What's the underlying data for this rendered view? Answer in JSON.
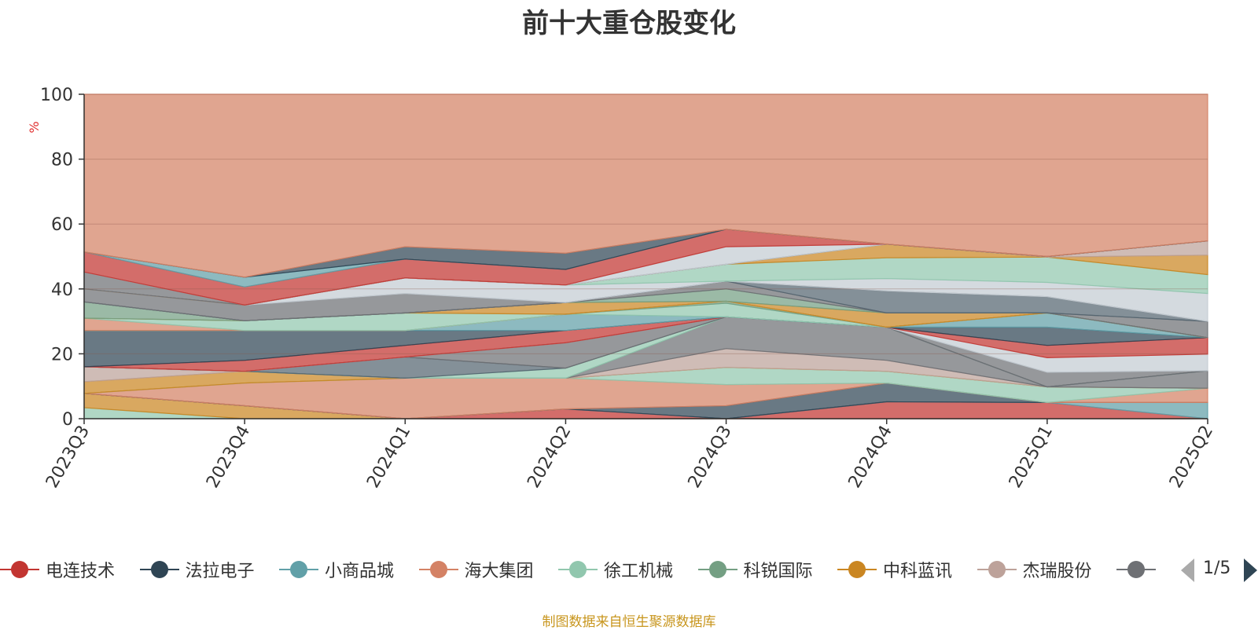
{
  "title": "前十大重仓股变化",
  "source_note": "制图数据来自恒生聚源数据库",
  "legend": {
    "items": [
      {
        "name": "电连技术",
        "color": "#c23531"
      },
      {
        "name": "法拉电子",
        "color": "#2f4554"
      },
      {
        "name": "小商品城",
        "color": "#61a0a8"
      },
      {
        "name": "海大集团",
        "color": "#d48265"
      },
      {
        "name": "徐工机械",
        "color": "#91c7ae"
      },
      {
        "name": "科锐国际",
        "color": "#749f83"
      },
      {
        "name": "中科蓝讯",
        "color": "#ca8622"
      },
      {
        "name": "杰瑞股份",
        "color": "#bda29a"
      },
      {
        "name": "",
        "color": "#6e7074"
      }
    ],
    "page_indicator": "1/5"
  },
  "chart_data": {
    "type": "area",
    "stacked": true,
    "title": "前十大重仓股变化",
    "ylabel": "%",
    "xlabel": "",
    "x": [
      "2023Q3",
      "2023Q4",
      "2024Q1",
      "2024Q2",
      "2024Q3",
      "2024Q4",
      "2025Q1",
      "2025Q2"
    ],
    "ylim": [
      0,
      100
    ],
    "yticks": [
      0,
      20,
      40,
      60,
      80,
      100
    ],
    "grid": true,
    "note": "layers listed bottom to top; values are each layer's top edge (cumulative percent)",
    "series_tops": [
      {
        "color": "#91c7ae",
        "values": [
          3.4,
          0,
          0,
          0,
          0,
          0,
          0,
          0
        ]
      },
      {
        "color": "#ca8622",
        "values": [
          7.8,
          4.0,
          0,
          0,
          0,
          0,
          0,
          0
        ]
      },
      {
        "color": "#c23531",
        "values": [
          7.8,
          4.0,
          0,
          3.0,
          0,
          5.2,
          5.0,
          0
        ]
      },
      {
        "color": "#61a0a8",
        "values": [
          7.8,
          4.0,
          0,
          3.0,
          0,
          5.2,
          5.0,
          5.0
        ]
      },
      {
        "color": "#2f4554",
        "values": [
          7.8,
          4.0,
          0,
          3.0,
          4.0,
          11.0,
          5.0,
          5.0
        ]
      },
      {
        "color": "#d48265",
        "values": [
          7.8,
          11.0,
          12.5,
          12.5,
          10.5,
          11.0,
          5.0,
          9.4
        ]
      },
      {
        "color": "#91c7ae",
        "values": [
          7.8,
          11.0,
          12.5,
          12.5,
          15.8,
          14.6,
          9.8,
          9.4
        ]
      },
      {
        "color": "#ca8622",
        "values": [
          11.4,
          14.6,
          12.5,
          12.5,
          15.8,
          14.6,
          9.8,
          9.4
        ]
      },
      {
        "color": "#bda29a",
        "values": [
          16.0,
          14.6,
          12.5,
          12.5,
          21.6,
          18.0,
          9.8,
          9.4
        ]
      },
      {
        "color": "#6e7074",
        "values": [
          16.0,
          14.6,
          12.5,
          12.5,
          31.4,
          28.2,
          9.8,
          14.8
        ]
      },
      {
        "color": "#91c7ae",
        "values": [
          16.0,
          14.6,
          12.5,
          15.6,
          31.4,
          28.2,
          9.8,
          14.8
        ]
      },
      {
        "color": "#546570",
        "values": [
          16.0,
          14.6,
          19.0,
          15.6,
          31.4,
          28.2,
          9.8,
          14.8
        ]
      },
      {
        "color": "#6e7074",
        "values": [
          16.0,
          14.6,
          19.0,
          23.4,
          31.4,
          28.2,
          14.3,
          14.8
        ]
      },
      {
        "color": "#c4ccd3",
        "values": [
          16.0,
          14.6,
          19.0,
          23.4,
          31.4,
          28.2,
          18.8,
          19.9
        ]
      },
      {
        "color": "#c23531",
        "values": [
          16.0,
          18.0,
          22.6,
          27.2,
          31.4,
          28.2,
          22.6,
          25.0
        ]
      },
      {
        "color": "#2f4554",
        "values": [
          27.2,
          27.2,
          27.2,
          27.2,
          31.4,
          28.2,
          28.2,
          25.0
        ]
      },
      {
        "color": "#61a0a8",
        "values": [
          27.2,
          27.2,
          27.2,
          32.2,
          31.4,
          28.2,
          32.6,
          25.0
        ]
      },
      {
        "color": "#91c7ae",
        "values": [
          27.2,
          27.2,
          27.2,
          32.2,
          35.6,
          28.2,
          32.6,
          25.0
        ]
      },
      {
        "color": "#749f83",
        "values": [
          27.2,
          27.2,
          27.2,
          32.2,
          36.2,
          28.2,
          32.6,
          25.0
        ]
      },
      {
        "color": "#d48265",
        "values": [
          31.0,
          27.2,
          27.2,
          32.2,
          36.2,
          28.2,
          32.6,
          25.0
        ]
      },
      {
        "color": "#91c7ae",
        "values": [
          31.0,
          30.2,
          32.6,
          32.2,
          36.2,
          28.2,
          32.6,
          25.0
        ]
      },
      {
        "color": "#ca8622",
        "values": [
          31.0,
          30.2,
          32.6,
          35.8,
          36.2,
          32.6,
          32.6,
          25.0
        ]
      },
      {
        "color": "#749f83",
        "values": [
          36.0,
          30.2,
          32.6,
          35.8,
          40.0,
          32.6,
          32.6,
          25.0
        ]
      },
      {
        "color": "#6e7074",
        "values": [
          36.0,
          30.2,
          32.6,
          35.8,
          42.4,
          32.6,
          32.6,
          30.0
        ]
      },
      {
        "color": "#546570",
        "values": [
          36.0,
          30.2,
          32.6,
          35.8,
          42.4,
          39.4,
          37.6,
          30.0
        ]
      },
      {
        "color": "#6e7074",
        "values": [
          40.0,
          35.0,
          38.6,
          35.8,
          42.4,
          39.4,
          37.6,
          30.0
        ]
      },
      {
        "color": "#c4ccd3",
        "values": [
          40.0,
          35.0,
          43.4,
          41.2,
          42.4,
          43.2,
          42.0,
          38.6
        ]
      },
      {
        "color": "#91c7ae",
        "values": [
          40.0,
          35.0,
          43.4,
          41.2,
          47.6,
          49.6,
          49.8,
          44.4
        ]
      },
      {
        "color": "#ca8622",
        "values": [
          40.0,
          35.0,
          43.4,
          41.2,
          47.6,
          53.8,
          49.8,
          50.4
        ]
      },
      {
        "color": "#bda29a",
        "values": [
          40.0,
          35.0,
          43.4,
          41.2,
          47.6,
          53.8,
          50.0,
          54.8
        ]
      },
      {
        "color": "#6e7074",
        "values": [
          45.2,
          35.0,
          43.4,
          41.2,
          47.6,
          53.8,
          50.0,
          54.8
        ]
      },
      {
        "color": "#c4ccd3",
        "values": [
          45.2,
          35.0,
          43.4,
          41.2,
          53.0,
          53.8,
          50.0,
          54.8
        ]
      },
      {
        "color": "#c23531",
        "values": [
          51.4,
          40.6,
          49.2,
          46.0,
          58.4,
          53.8,
          50.0,
          54.8
        ]
      },
      {
        "color": "#61a0a8",
        "values": [
          51.4,
          43.6,
          49.2,
          46.0,
          58.4,
          53.8,
          50.0,
          54.8
        ]
      },
      {
        "color": "#2f4554",
        "values": [
          51.4,
          43.6,
          53.0,
          51.0,
          58.4,
          53.8,
          50.0,
          54.8
        ]
      },
      {
        "color": "#d48265",
        "values": [
          100,
          100,
          100,
          100,
          100,
          100,
          100,
          100
        ]
      }
    ]
  }
}
